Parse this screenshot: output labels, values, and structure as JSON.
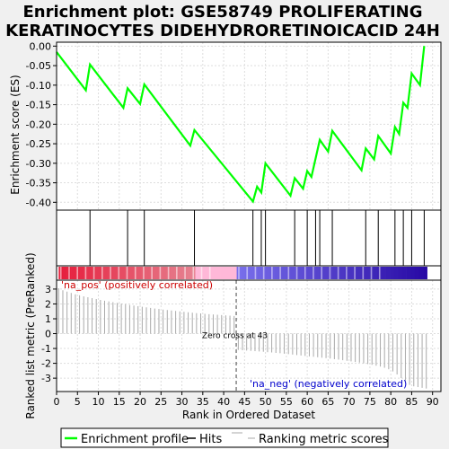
{
  "title_line1": "Enrichment plot: GSE58749 PROLIFERATING",
  "title_line2": "KERATINOCYTES DIDEHYDRORETINOICACID 24H",
  "colors": {
    "es_line": "#00ff00",
    "hits": "#000000",
    "metric": "#aaaaaa",
    "grid": "#dddddd",
    "pos_label": "#cc0000",
    "neg_label": "#0000cc",
    "zero_line": "#444444"
  },
  "chart_data": [
    {
      "type": "line",
      "panel": "enrichment",
      "ylabel": "Enrichment score (ES)",
      "ylim": [
        -0.42,
        0.01
      ],
      "yticks": [
        0.0,
        -0.05,
        -0.1,
        -0.15,
        -0.2,
        -0.25,
        -0.3,
        -0.35,
        -0.4
      ],
      "ytick_labels": [
        "0.00",
        "-0.05",
        "-0.10",
        "-0.15",
        "-0.20",
        "-0.25",
        "-0.30",
        "-0.35",
        "-0.40"
      ],
      "grid": true,
      "x": [
        0,
        7,
        8,
        16,
        17,
        20,
        21,
        32,
        33,
        47,
        48,
        49,
        50,
        56,
        57,
        59,
        60,
        61,
        62,
        63,
        64,
        65,
        66,
        73,
        74,
        76,
        77,
        80,
        81,
        82,
        83,
        84,
        85,
        87,
        88
      ],
      "y": [
        -0.015,
        -0.113,
        -0.047,
        -0.158,
        -0.108,
        -0.148,
        -0.098,
        -0.255,
        -0.215,
        -0.398,
        -0.36,
        -0.375,
        -0.3,
        -0.383,
        -0.338,
        -0.365,
        -0.32,
        -0.335,
        -0.288,
        -0.24,
        -0.255,
        -0.27,
        -0.217,
        -0.318,
        -0.262,
        -0.29,
        -0.23,
        -0.275,
        -0.207,
        -0.225,
        -0.145,
        -0.158,
        -0.07,
        -0.1,
        0.0
      ]
    },
    {
      "type": "hits",
      "panel": "hits",
      "positions": [
        8,
        17,
        21,
        33,
        47,
        49,
        50,
        57,
        60,
        62,
        63,
        66,
        74,
        77,
        81,
        83,
        85,
        88
      ]
    },
    {
      "type": "heatmap",
      "panel": "rank-color-bar",
      "n": 89,
      "zero_cross": 43
    },
    {
      "type": "bar",
      "panel": "ranking-metric",
      "xlabel": "Rank in Ordered Dataset",
      "ylabel": "Ranked list metric (PreRanked)",
      "xlim": [
        0,
        92
      ],
      "xticks": [
        0,
        5,
        10,
        15,
        20,
        25,
        30,
        35,
        40,
        45,
        50,
        55,
        60,
        65,
        70,
        75,
        80,
        85,
        90
      ],
      "ylim": [
        -3.9,
        3.6
      ],
      "yticks": [
        3,
        2,
        1,
        0,
        -1,
        -2,
        -3
      ],
      "grid": true,
      "positive_label": "'na_pos' (positively correlated)",
      "negative_label": "'na_neg' (negatively correlated)",
      "zero_cross_label": "Zero cross at 43",
      "zero_cross": 43,
      "positive_values": [
        3.05,
        2.92,
        2.83,
        2.74,
        2.65,
        2.58,
        2.51,
        2.45,
        2.39,
        2.33,
        2.27,
        2.22,
        2.17,
        2.12,
        2.07,
        2.02,
        1.98,
        1.93,
        1.89,
        1.85,
        1.81,
        1.77,
        1.73,
        1.69,
        1.66,
        1.62,
        1.59,
        1.56,
        1.53,
        1.5,
        1.47,
        1.44,
        1.41,
        1.38,
        1.36,
        1.33,
        1.31,
        1.29,
        1.27,
        1.25,
        1.23,
        1.21,
        1.19
      ],
      "negative_values": [
        -1.1,
        -1.12,
        -1.14,
        -1.16,
        -1.18,
        -1.2,
        -1.22,
        -1.25,
        -1.27,
        -1.3,
        -1.32,
        -1.35,
        -1.38,
        -1.41,
        -1.44,
        -1.47,
        -1.5,
        -1.53,
        -1.56,
        -1.59,
        -1.62,
        -1.65,
        -1.68,
        -1.72,
        -1.75,
        -1.79,
        -1.83,
        -1.87,
        -1.91,
        -1.95,
        -2.0,
        -2.05,
        -2.1,
        -2.16,
        -2.22,
        -2.3,
        -2.4,
        -2.55,
        -2.75,
        -3.0,
        -3.25,
        -3.45,
        -3.55,
        -3.6,
        -3.65,
        -3.7
      ]
    }
  ],
  "legend": {
    "enrichment_profile": "Enrichment profile",
    "hits": "Hits",
    "ranking_metric": "Ranking metric scores"
  }
}
